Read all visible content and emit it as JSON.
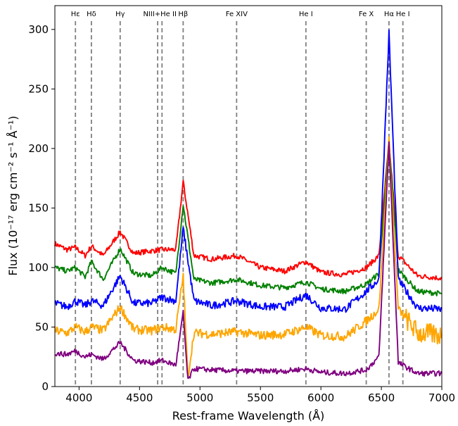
{
  "chart_data": {
    "type": "line",
    "xlabel": "Rest-frame Wavelength (Å)",
    "ylabel": "Flux (10⁻¹⁷ erg cm⁻² s⁻¹ Å⁻¹)",
    "xlim": [
      3800,
      7000
    ],
    "ylim": [
      0,
      320
    ],
    "xticks": [
      4000,
      4500,
      5000,
      5500,
      6000,
      6500,
      7000
    ],
    "yticks": [
      0,
      50,
      100,
      150,
      200,
      250,
      300
    ],
    "grid": false,
    "legend": "none",
    "line_markers": [
      {
        "label": "Hε",
        "x": 3970
      },
      {
        "label": "Hδ",
        "x": 4102
      },
      {
        "label": "Hγ",
        "x": 4340
      },
      {
        "label": "NIII+He II",
        "x": 4650,
        "x2": 4686
      },
      {
        "label": "Hβ",
        "x": 4861
      },
      {
        "label": "Fe XIV",
        "x": 5303
      },
      {
        "label": "He I",
        "x": 5876
      },
      {
        "label": "Fe X",
        "x": 6375
      },
      {
        "label": "Hα",
        "x": 6563
      },
      {
        "label": "He I",
        "x": 6678
      }
    ],
    "series": [
      {
        "color": "#ff0000",
        "x": [
          3800,
          3900,
          3970,
          4050,
          4102,
          4200,
          4340,
          4450,
          4600,
          4686,
          4800,
          4861,
          4950,
          5100,
          5303,
          5500,
          5700,
          5876,
          6000,
          6200,
          6375,
          6480,
          6563,
          6640,
          6800,
          7000
        ],
        "y": [
          120,
          115,
          117,
          110,
          118,
          110,
          130,
          112,
          114,
          115,
          115,
          172,
          110,
          107,
          110,
          100,
          97,
          105,
          96,
          94,
          100,
          110,
          205,
          110,
          93,
          91
        ]
      },
      {
        "color": "#008000",
        "x": [
          3800,
          3900,
          3970,
          4050,
          4102,
          4200,
          4340,
          4450,
          4600,
          4686,
          4800,
          4861,
          4950,
          5100,
          5303,
          5500,
          5700,
          5876,
          6000,
          6200,
          6375,
          6480,
          6563,
          6640,
          6800,
          7000
        ],
        "y": [
          100,
          97,
          100,
          92,
          105,
          90,
          116,
          95,
          93,
          100,
          95,
          153,
          90,
          87,
          90,
          85,
          83,
          88,
          82,
          80,
          86,
          95,
          205,
          98,
          80,
          78
        ]
      },
      {
        "color": "#0000ff",
        "x": [
          3800,
          3900,
          3970,
          4050,
          4102,
          4200,
          4340,
          4450,
          4600,
          4686,
          4800,
          4861,
          4950,
          5100,
          5303,
          5500,
          5700,
          5876,
          6000,
          6200,
          6375,
          6480,
          6563,
          6640,
          6800,
          7000
        ],
        "y": [
          70,
          67,
          72,
          68,
          72,
          68,
          93,
          70,
          70,
          75,
          72,
          133,
          72,
          68,
          72,
          67,
          67,
          77,
          66,
          65,
          80,
          90,
          297,
          90,
          66,
          65
        ]
      },
      {
        "color": "#ffa500",
        "x": [
          3800,
          3900,
          3970,
          4050,
          4102,
          4200,
          4340,
          4450,
          4600,
          4686,
          4800,
          4861,
          4900,
          4950,
          5100,
          5303,
          5500,
          5700,
          5876,
          6000,
          6200,
          6375,
          6480,
          6563,
          6640,
          6800,
          7000
        ],
        "y": [
          47,
          45,
          50,
          46,
          50,
          47,
          67,
          48,
          47,
          50,
          48,
          93,
          8,
          45,
          44,
          46,
          43,
          44,
          50,
          43,
          42,
          55,
          65,
          207,
          65,
          45,
          43
        ]
      },
      {
        "color": "#800080",
        "x": [
          3800,
          3900,
          3970,
          4050,
          4102,
          4200,
          4340,
          4450,
          4600,
          4686,
          4800,
          4861,
          4900,
          4950,
          5100,
          5303,
          5500,
          5700,
          5876,
          6000,
          6200,
          6375,
          6480,
          6563,
          6640,
          6800,
          7000
        ],
        "y": [
          28,
          27,
          30,
          25,
          27,
          23,
          37,
          22,
          20,
          22,
          18,
          62,
          5,
          15,
          14,
          13,
          13,
          13,
          15,
          12,
          11,
          14,
          25,
          205,
          20,
          11,
          11
        ]
      }
    ]
  }
}
